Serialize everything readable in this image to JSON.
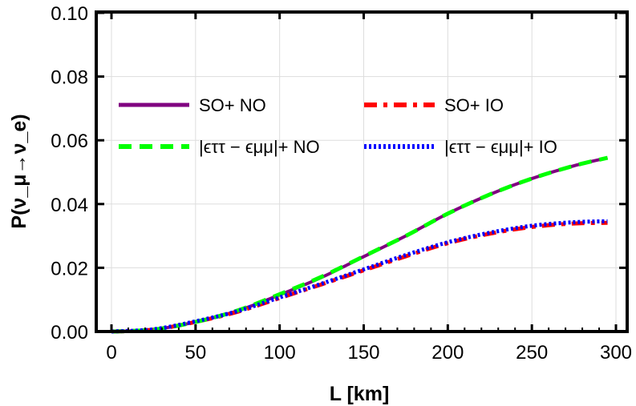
{
  "chart_data": {
    "type": "line",
    "title": "",
    "xlabel": "L [km]",
    "ylabel": "P(ν_μ→ν_e)",
    "xlim": [
      0,
      300
    ],
    "ylim": [
      0,
      0.1
    ],
    "xticks": [
      "0",
      "50",
      "100",
      "150",
      "200",
      "250",
      "300"
    ],
    "yticks": [
      "0.00",
      "0.02",
      "0.04",
      "0.06",
      "0.08",
      "0.10"
    ],
    "grid": true,
    "legend_placement": "top, inside plot",
    "x": [
      0,
      25,
      50,
      75,
      100,
      125,
      150,
      175,
      200,
      225,
      250,
      275,
      295
    ],
    "series": [
      {
        "name": "SO+ NO",
        "color": "#800080",
        "style": "solid",
        "values": [
          0,
          0.0006,
          0.003,
          0.0065,
          0.0115,
          0.017,
          0.0235,
          0.03,
          0.037,
          0.043,
          0.048,
          0.052,
          0.0545
        ]
      },
      {
        "name": "SO+ IO",
        "color": "#ff0000",
        "style": "dash-dot",
        "values": [
          0,
          0.0006,
          0.003,
          0.0062,
          0.0105,
          0.0148,
          0.0192,
          0.0236,
          0.0277,
          0.0307,
          0.0328,
          0.0339,
          0.0341
        ]
      },
      {
        "name": "|ϵττ − ϵμμ|+ NO",
        "color": "#00ff00",
        "style": "dashed",
        "values": [
          0,
          0.0006,
          0.003,
          0.0066,
          0.0117,
          0.0172,
          0.0236,
          0.03,
          0.037,
          0.043,
          0.048,
          0.052,
          0.0545
        ]
      },
      {
        "name": "|ϵττ − ϵμμ|+ IO",
        "color": "#0000ff",
        "style": "dotted",
        "values": [
          0,
          0.0007,
          0.0032,
          0.0064,
          0.0107,
          0.015,
          0.0195,
          0.024,
          0.028,
          0.031,
          0.0332,
          0.0343,
          0.0346
        ]
      }
    ]
  }
}
